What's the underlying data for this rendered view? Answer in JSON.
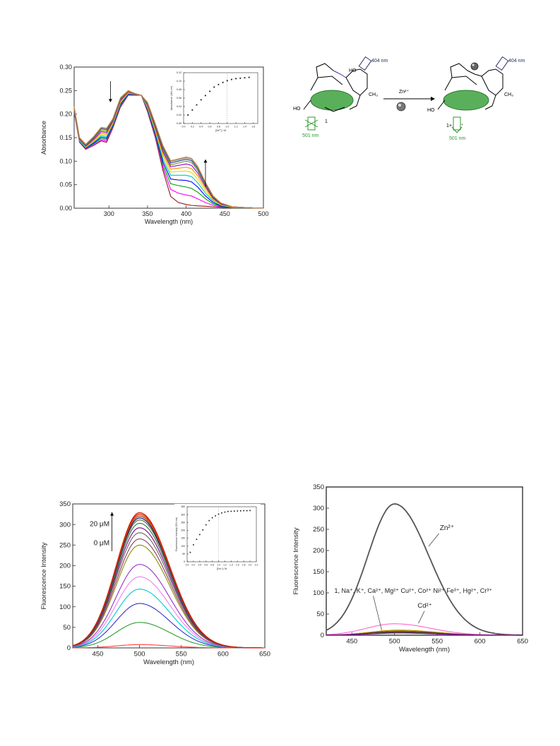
{
  "chart_data": [
    {
      "id": "uv",
      "type": "line",
      "xlabel": "Wavelength (nm)",
      "ylabel": "Absorbance",
      "xlim": [
        255,
        500
      ],
      "ylim": [
        0,
        0.3
      ],
      "xticks": [
        300,
        350,
        400,
        450,
        500
      ],
      "yticks": [
        0.0,
        0.05,
        0.1,
        0.15,
        0.2,
        0.25,
        0.3
      ],
      "ytick_labels": [
        "0.00",
        "0.05",
        "0.10",
        "0.15",
        "0.20",
        "0.25",
        "0.30"
      ],
      "x": [
        255,
        262,
        270,
        280,
        290,
        297,
        305,
        315,
        325,
        335,
        342,
        350,
        360,
        370,
        380,
        390,
        400,
        407,
        415,
        425,
        435,
        445,
        460,
        480,
        500
      ],
      "series": [
        {
          "color": "#8b1a1a",
          "values": [
            0.205,
            0.14,
            0.125,
            0.133,
            0.143,
            0.14,
            0.17,
            0.215,
            0.24,
            0.24,
            0.24,
            0.205,
            0.15,
            0.08,
            0.025,
            0.012,
            0.008,
            0.006,
            0.005,
            0.004,
            0.003,
            0.002,
            0.001,
            0.001,
            0.0
          ]
        },
        {
          "color": "#ff00ff",
          "values": [
            0.206,
            0.14,
            0.126,
            0.134,
            0.145,
            0.143,
            0.172,
            0.217,
            0.241,
            0.241,
            0.24,
            0.207,
            0.153,
            0.086,
            0.04,
            0.032,
            0.028,
            0.026,
            0.02,
            0.012,
            0.006,
            0.003,
            0.001,
            0.001,
            0.0
          ]
        },
        {
          "color": "#00a000",
          "values": [
            0.207,
            0.141,
            0.127,
            0.136,
            0.148,
            0.146,
            0.174,
            0.219,
            0.242,
            0.242,
            0.24,
            0.209,
            0.156,
            0.092,
            0.052,
            0.048,
            0.045,
            0.042,
            0.034,
            0.02,
            0.009,
            0.004,
            0.001,
            0.001,
            0.0
          ]
        },
        {
          "color": "#0000ff",
          "values": [
            0.208,
            0.142,
            0.128,
            0.138,
            0.151,
            0.149,
            0.176,
            0.221,
            0.243,
            0.243,
            0.24,
            0.211,
            0.159,
            0.098,
            0.062,
            0.06,
            0.059,
            0.056,
            0.045,
            0.026,
            0.012,
            0.005,
            0.002,
            0.001,
            0.0
          ]
        },
        {
          "color": "#00c8c8",
          "values": [
            0.209,
            0.143,
            0.129,
            0.14,
            0.154,
            0.152,
            0.178,
            0.223,
            0.244,
            0.243,
            0.24,
            0.213,
            0.162,
            0.104,
            0.07,
            0.07,
            0.07,
            0.067,
            0.054,
            0.032,
            0.015,
            0.006,
            0.002,
            0.001,
            0.0
          ]
        },
        {
          "color": "#e0e000",
          "values": [
            0.21,
            0.144,
            0.13,
            0.142,
            0.157,
            0.155,
            0.18,
            0.225,
            0.245,
            0.243,
            0.24,
            0.215,
            0.165,
            0.11,
            0.077,
            0.078,
            0.079,
            0.076,
            0.062,
            0.037,
            0.017,
            0.007,
            0.002,
            0.001,
            0.0
          ]
        },
        {
          "color": "#ff8c00",
          "values": [
            0.211,
            0.145,
            0.131,
            0.144,
            0.16,
            0.158,
            0.182,
            0.227,
            0.246,
            0.243,
            0.24,
            0.217,
            0.168,
            0.115,
            0.083,
            0.085,
            0.087,
            0.084,
            0.069,
            0.042,
            0.019,
            0.008,
            0.002,
            0.001,
            0.0
          ]
        },
        {
          "color": "#9400d3",
          "values": [
            0.212,
            0.146,
            0.132,
            0.146,
            0.163,
            0.161,
            0.184,
            0.229,
            0.247,
            0.243,
            0.24,
            0.219,
            0.171,
            0.12,
            0.088,
            0.091,
            0.094,
            0.091,
            0.075,
            0.046,
            0.021,
            0.009,
            0.003,
            0.001,
            0.0
          ]
        },
        {
          "color": "#6b8e23",
          "values": [
            0.213,
            0.147,
            0.133,
            0.148,
            0.166,
            0.164,
            0.186,
            0.231,
            0.248,
            0.243,
            0.24,
            0.221,
            0.174,
            0.124,
            0.092,
            0.096,
            0.1,
            0.097,
            0.08,
            0.049,
            0.023,
            0.01,
            0.003,
            0.001,
            0.0
          ]
        },
        {
          "color": "#1e3a8a",
          "values": [
            0.214,
            0.148,
            0.134,
            0.15,
            0.169,
            0.167,
            0.188,
            0.233,
            0.249,
            0.243,
            0.24,
            0.223,
            0.177,
            0.128,
            0.096,
            0.1,
            0.104,
            0.101,
            0.084,
            0.052,
            0.024,
            0.01,
            0.003,
            0.001,
            0.0
          ]
        },
        {
          "color": "#808080",
          "values": [
            0.215,
            0.149,
            0.135,
            0.151,
            0.171,
            0.169,
            0.189,
            0.234,
            0.249,
            0.243,
            0.24,
            0.224,
            0.179,
            0.131,
            0.099,
            0.103,
            0.107,
            0.104,
            0.087,
            0.054,
            0.025,
            0.011,
            0.003,
            0.001,
            0.0
          ]
        },
        {
          "color": "#cd853f",
          "values": [
            0.216,
            0.15,
            0.136,
            0.152,
            0.172,
            0.17,
            0.19,
            0.235,
            0.25,
            0.243,
            0.24,
            0.225,
            0.18,
            0.133,
            0.101,
            0.105,
            0.109,
            0.106,
            0.089,
            0.055,
            0.026,
            0.011,
            0.003,
            0.001,
            0.0
          ]
        }
      ],
      "annotations": [
        "down-arrow at 300 nm",
        "up-arrow at 425 nm"
      ]
    },
    {
      "id": "uv-inset",
      "type": "scatter",
      "xlabel": "[Zn²⁺] / M",
      "ylabel": "Absorbance (404 nm)",
      "xlim": [
        0,
        1.7
      ],
      "ylim": [
        0,
        0.12
      ],
      "xticks": [
        0.0,
        0.2,
        0.4,
        0.6,
        0.8,
        1.0,
        1.2,
        1.4,
        1.6
      ],
      "xtick_labels": [
        "0.0",
        "0.2",
        "0.4",
        "0.6",
        "0.8",
        "1.0",
        "1.2",
        "1.4",
        "1.6"
      ],
      "yticks": [
        0.0,
        0.02,
        0.04,
        0.06,
        0.08,
        0.1,
        0.12
      ],
      "ytick_labels": [
        "0.00",
        "0.02",
        "0.04",
        "0.06",
        "0.08",
        "0.10",
        "0.12"
      ],
      "x": [
        0.1,
        0.2,
        0.3,
        0.4,
        0.5,
        0.6,
        0.7,
        0.8,
        0.9,
        1.0,
        1.1,
        1.2,
        1.3,
        1.4,
        1.5
      ],
      "y": [
        0.02,
        0.032,
        0.044,
        0.056,
        0.066,
        0.076,
        0.086,
        0.092,
        0.097,
        0.101,
        0.104,
        0.106,
        0.107,
        0.108,
        0.109
      ],
      "vline": 1.0
    },
    {
      "id": "fl-titration",
      "type": "line",
      "xlabel": "Wavelength (nm)",
      "ylabel": "Fluorescence Intensity",
      "xlim": [
        420,
        650
      ],
      "ylim": [
        0,
        350
      ],
      "xticks": [
        450,
        500,
        550,
        600,
        650
      ],
      "yticks": [
        0,
        50,
        100,
        150,
        200,
        250,
        300,
        350
      ],
      "peak_center": 500,
      "series": [
        {
          "color": "#ff4040",
          "peak": 8
        },
        {
          "color": "#2ca02c",
          "peak": 62
        },
        {
          "color": "#3333cc",
          "peak": 108
        },
        {
          "color": "#00cccc",
          "peak": 143
        },
        {
          "color": "#ee82ee",
          "peak": 173
        },
        {
          "color": "#9932cc",
          "peak": 203
        },
        {
          "color": "#8b8b00",
          "peak": 250
        },
        {
          "color": "#8b3a62",
          "peak": 265
        },
        {
          "color": "#666666",
          "peak": 280
        },
        {
          "color": "#800080",
          "peak": 292
        },
        {
          "color": "#2f6f4f",
          "peak": 303
        },
        {
          "color": "#556b2f",
          "peak": 311
        },
        {
          "color": "#000080",
          "peak": 316
        },
        {
          "color": "#8b4513",
          "peak": 320
        },
        {
          "color": "#d2691e",
          "peak": 323
        },
        {
          "color": "#ff0000",
          "peak": 326
        },
        {
          "color": "#cc2200",
          "peak": 329
        }
      ],
      "labels": {
        "high": "20 μM",
        "low": "0 μM"
      }
    },
    {
      "id": "fl-inset",
      "type": "scatter",
      "xlabel": "[Zn²⁺] / M",
      "ylabel": "Fluorescence Intensity (501 nm)",
      "xlim": [
        0,
        2.2
      ],
      "ylim": [
        0,
        350
      ],
      "xticks": [
        0.0,
        0.2,
        0.4,
        0.6,
        0.8,
        1.0,
        1.2,
        1.4,
        1.6,
        1.8,
        2.0,
        2.2
      ],
      "xtick_labels": [
        "0.0",
        "0.2",
        "0.4",
        "0.6",
        "0.8",
        "1.0",
        "1.2",
        "1.4",
        "1.6",
        "1.8",
        "2.0",
        "2.2"
      ],
      "yticks": [
        0,
        50,
        100,
        150,
        200,
        250,
        300,
        350
      ],
      "x": [
        0.1,
        0.2,
        0.3,
        0.4,
        0.5,
        0.6,
        0.7,
        0.8,
        0.9,
        1.0,
        1.1,
        1.2,
        1.3,
        1.4,
        1.5,
        1.6,
        1.7,
        1.8,
        1.9,
        2.0
      ],
      "y": [
        60,
        108,
        143,
        173,
        203,
        235,
        262,
        280,
        292,
        303,
        311,
        316,
        320,
        321,
        322,
        323,
        324,
        325,
        325,
        326
      ],
      "vline": 1.0
    },
    {
      "id": "fl-selectivity",
      "type": "line",
      "xlabel": "Wavelength (nm)",
      "ylabel": "Fluorescence Intensity",
      "xlim": [
        420,
        650
      ],
      "ylim": [
        0,
        350
      ],
      "xticks": [
        450,
        500,
        550,
        600,
        650
      ],
      "yticks": [
        0,
        50,
        100,
        150,
        200,
        250,
        300,
        350
      ],
      "series": [
        {
          "name": "Zn²⁺",
          "color": "#555555",
          "peak": 310,
          "center": 500,
          "width": 40
        },
        {
          "name": "Cd²⁺",
          "color": "#ff66cc",
          "peak": 27,
          "center": 500,
          "width": 42
        },
        {
          "color": "#c08000",
          "peak": 12,
          "center": 505,
          "width": 42
        },
        {
          "color": "#808000",
          "peak": 10,
          "center": 505,
          "width": 42
        },
        {
          "color": "#0000cc",
          "peak": 8,
          "center": 505,
          "width": 42
        },
        {
          "color": "#cc0000",
          "peak": 7,
          "center": 505,
          "width": 42
        },
        {
          "color": "#00aa00",
          "peak": 6,
          "center": 505,
          "width": 42
        },
        {
          "color": "#8800aa",
          "peak": 5,
          "center": 505,
          "width": 42
        }
      ],
      "labels": {
        "zn": "Zn²⁺",
        "cd": "Cd²⁺",
        "others": "1, Na⁺, K⁺, Ca²⁺, Mg²⁺ Cu²⁺, Co²⁺ Ni²⁺ Fe³⁺, Hg²⁺, Cr³⁺"
      }
    }
  ],
  "scheme": {
    "ex_label": "404 nm",
    "em_label": "501 nm",
    "reagent": "Zn²⁺",
    "compound": "1",
    "complex": "1+ Zn²⁺",
    "ho": "HO",
    "ch3": "CH₃"
  }
}
